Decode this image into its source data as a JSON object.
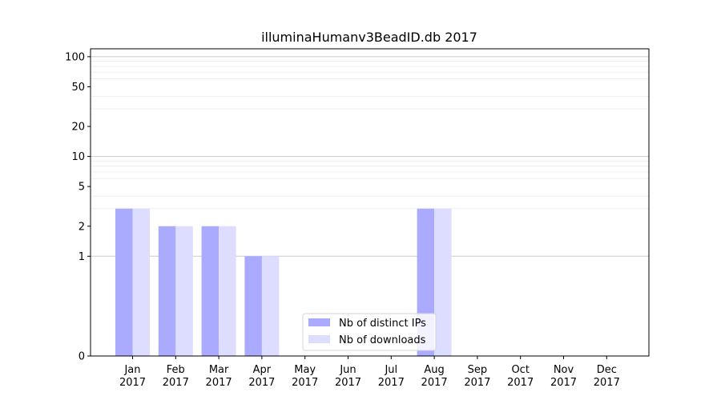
{
  "chart_data": {
    "type": "bar",
    "title": "illuminaHumanv3BeadID.db 2017",
    "xlabel": "",
    "ylabel": "",
    "yscale": "symlog",
    "ylim": [
      0,
      120
    ],
    "yticks": [
      0,
      1,
      2,
      5,
      10,
      20,
      50,
      100
    ],
    "ytick_labels": [
      "0",
      "1",
      "2",
      "5",
      "10",
      "20",
      "50",
      "100"
    ],
    "categories": [
      {
        "month": "Jan",
        "year": "2017"
      },
      {
        "month": "Feb",
        "year": "2017"
      },
      {
        "month": "Mar",
        "year": "2017"
      },
      {
        "month": "Apr",
        "year": "2017"
      },
      {
        "month": "May",
        "year": "2017"
      },
      {
        "month": "Jun",
        "year": "2017"
      },
      {
        "month": "Jul",
        "year": "2017"
      },
      {
        "month": "Aug",
        "year": "2017"
      },
      {
        "month": "Sep",
        "year": "2017"
      },
      {
        "month": "Oct",
        "year": "2017"
      },
      {
        "month": "Nov",
        "year": "2017"
      },
      {
        "month": "Dec",
        "year": "2017"
      }
    ],
    "series": [
      {
        "name": "Nb of distinct IPs",
        "color": "#aaaaff",
        "values": [
          3,
          2,
          2,
          1,
          0,
          0,
          0,
          3,
          0,
          0,
          0,
          0
        ]
      },
      {
        "name": "Nb of downloads",
        "color": "#ddddff",
        "values": [
          3,
          2,
          2,
          1,
          0,
          0,
          0,
          3,
          0,
          0,
          0,
          0
        ]
      }
    ],
    "grid": true,
    "legend_position": "bottom-center"
  }
}
